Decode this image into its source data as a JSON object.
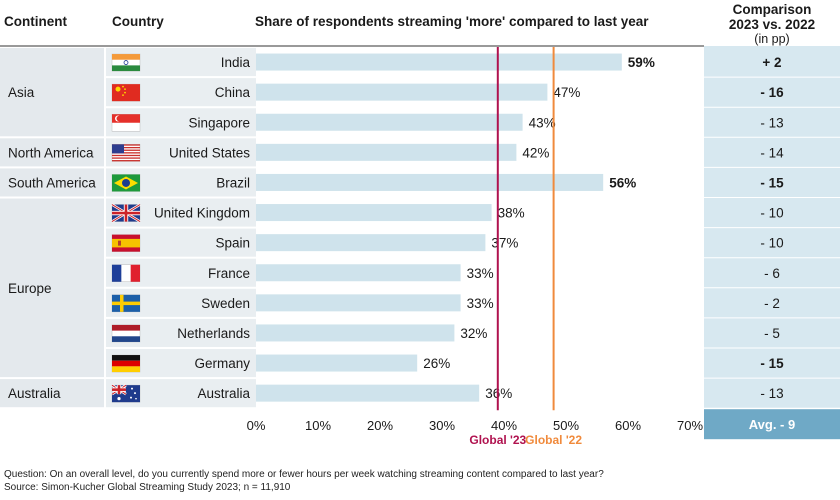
{
  "headers": {
    "continent": "Continent",
    "country": "Country",
    "chart_title": "Share of respondents streaming 'more' compared to last year",
    "comparison_line1": "Comparison",
    "comparison_line2": "2023 vs. 2022",
    "comparison_line3": "(in pp)"
  },
  "continents": [
    {
      "name": "Asia",
      "first_row": 0,
      "last_row": 2
    },
    {
      "name": "North America",
      "first_row": 3,
      "last_row": 3
    },
    {
      "name": "South America",
      "first_row": 4,
      "last_row": 4
    },
    {
      "name": "Europe",
      "first_row": 5,
      "last_row": 10
    },
    {
      "name": "Australia",
      "first_row": 11,
      "last_row": 11
    }
  ],
  "rows": [
    {
      "country": "India",
      "flag": "india-flag",
      "value": 59,
      "label": "59%",
      "bold": true,
      "comparison": "+ 2",
      "comparison_bold": true
    },
    {
      "country": "China",
      "flag": "china-flag",
      "value": 47,
      "label": "47%",
      "bold": false,
      "comparison": "- 16",
      "comparison_bold": true
    },
    {
      "country": "Singapore",
      "flag": "singapore-flag",
      "value": 43,
      "label": "43%",
      "bold": false,
      "comparison": "- 13",
      "comparison_bold": false
    },
    {
      "country": "United States",
      "flag": "usa-flag",
      "value": 42,
      "label": "42%",
      "bold": false,
      "comparison": "- 14",
      "comparison_bold": false
    },
    {
      "country": "Brazil",
      "flag": "brazil-flag",
      "value": 56,
      "label": "56%",
      "bold": true,
      "comparison": "- 15",
      "comparison_bold": true
    },
    {
      "country": "United Kingdom",
      "flag": "uk-flag",
      "value": 38,
      "label": "38%",
      "bold": false,
      "comparison": "- 10",
      "comparison_bold": false
    },
    {
      "country": "Spain",
      "flag": "spain-flag",
      "value": 37,
      "label": "37%",
      "bold": false,
      "comparison": "- 10",
      "comparison_bold": false
    },
    {
      "country": "France",
      "flag": "france-flag",
      "value": 33,
      "label": "33%",
      "bold": false,
      "comparison": "- 6",
      "comparison_bold": false
    },
    {
      "country": "Sweden",
      "flag": "sweden-flag",
      "value": 33,
      "label": "33%",
      "bold": false,
      "comparison": "- 2",
      "comparison_bold": false
    },
    {
      "country": "Netherlands",
      "flag": "netherlands-flag",
      "value": 32,
      "label": "32%",
      "bold": false,
      "comparison": "- 5",
      "comparison_bold": false
    },
    {
      "country": "Germany",
      "flag": "germany-flag",
      "value": 26,
      "label": "26%",
      "bold": false,
      "comparison": "- 15",
      "comparison_bold": true
    },
    {
      "country": "Australia",
      "flag": "australia-flag",
      "value": 36,
      "label": "36%",
      "bold": false,
      "comparison": "- 13",
      "comparison_bold": false
    }
  ],
  "chart_data": {
    "type": "bar",
    "orientation": "horizontal",
    "title": "Share of respondents streaming 'more' compared to last year",
    "categories": [
      "India",
      "China",
      "Singapore",
      "United States",
      "Brazil",
      "United Kingdom",
      "Spain",
      "France",
      "Sweden",
      "Netherlands",
      "Germany",
      "Australia"
    ],
    "values": [
      59,
      47,
      43,
      42,
      56,
      38,
      37,
      33,
      33,
      32,
      26,
      36
    ],
    "x_ticks": [
      "0%",
      "10%",
      "20%",
      "30%",
      "40%",
      "50%",
      "60%",
      "70%"
    ],
    "xlim": [
      0,
      70
    ],
    "reference_lines": [
      {
        "name": "Global '23",
        "value": 39,
        "color": "#b0124f"
      },
      {
        "name": "Global '22",
        "value": 48,
        "color": "#f08a3c"
      }
    ],
    "comparison_values": [
      2,
      -16,
      -13,
      -14,
      -15,
      -10,
      -10,
      -6,
      -2,
      -5,
      -15,
      -13
    ]
  },
  "average": "Avg. - 9",
  "footnotes": {
    "question": "Question: On an overall level, do you currently spend more or fewer hours per week watching streaming content compared to last year?",
    "source": "Source: Simon-Kucher Global Streaming Study 2023; n = 11,910"
  },
  "colors": {
    "bar": "#cfe3ec",
    "row_band": "#e9eef1",
    "continent_band": "#e4e9ed",
    "comparison_band": "#d7e8f0",
    "avg_box": "#6fa9c6",
    "global23": "#b0124f",
    "global22": "#f08a3c"
  }
}
